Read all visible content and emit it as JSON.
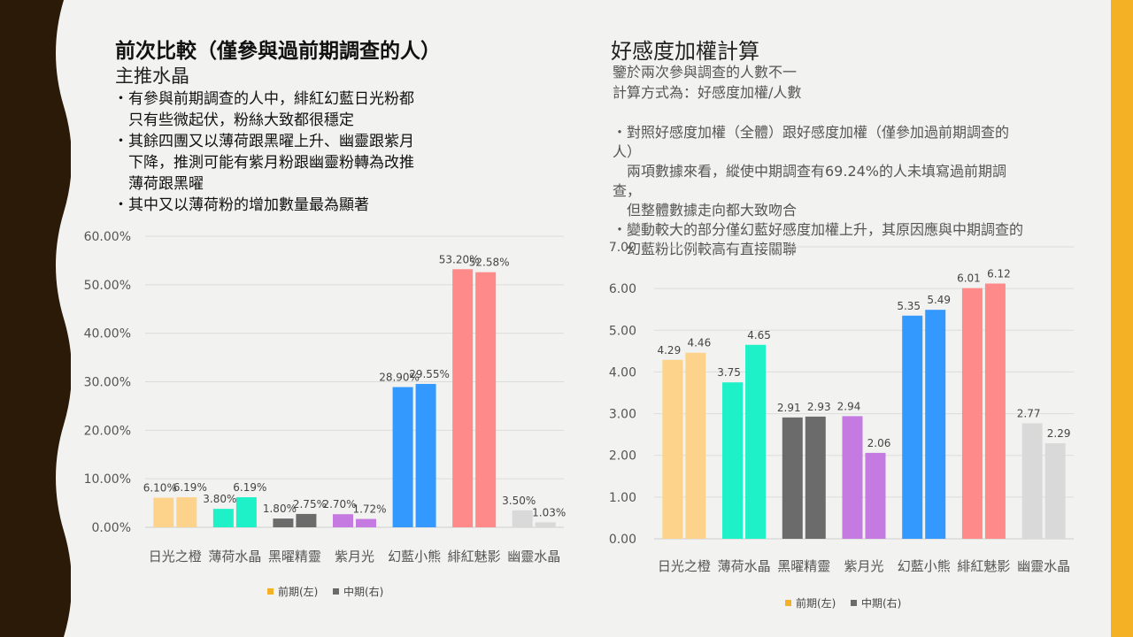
{
  "colors": {
    "sidebar_dark": "#2b1a08",
    "accent_bar": "#f5b125",
    "background": "#f2f2f0",
    "legend_left": "#f5b125",
    "legend_right": "#6b6b6b"
  },
  "left": {
    "title": "前次比較（僅參與過前期調查的人）",
    "subtitle": "主推水晶",
    "bullets": [
      "・有參與前期調查的人中，緋紅幻藍日光粉都",
      "　只有些微起伏，粉絲大致都很穩定",
      "・其餘四團又以薄荷跟黑曜上升、幽靈跟紫月",
      "　下降，推測可能有紫月粉跟幽靈粉轉為改推",
      "　薄荷跟黑曜",
      "・其中又以薄荷粉的增加數量最為顯著"
    ]
  },
  "right": {
    "title": "好感度加權計算",
    "line1": "鑒於兩次參與調查的人數不一",
    "line2": "計算方式為：好感度加權/人數",
    "body": [
      "・對照好感度加權（全體）跟好感度加權（僅參加過前期調查的",
      "人）",
      "　兩項數據來看，縱使中期調查有69.24%的人未填寫過前期調",
      "查，",
      "　但整體數據走向都大致吻合",
      "・變動較大的部分僅幻藍好感度加權上升，其原因應與中期調查的",
      "　幻藍粉比例較高有直接關聯"
    ]
  },
  "chart_data": [
    {
      "type": "bar",
      "categories": [
        "日光之橙",
        "薄荷水晶",
        "黑曜精靈",
        "紫月光",
        "幻藍小熊",
        "緋紅魅影",
        "幽靈水晶"
      ],
      "colors": [
        "#fdd38c",
        "#1ef0c8",
        "#6b6b6b",
        "#c47ae0",
        "#3399ff",
        "#ff8a8a",
        "#d9d9d9"
      ],
      "series": [
        {
          "name": "前期(左)",
          "values": [
            6.1,
            3.8,
            1.8,
            2.7,
            28.9,
            53.2,
            3.5
          ],
          "labels": [
            "6.10%",
            "3.80%",
            "1.80%",
            "2.70%",
            "28.90%",
            "53.20%",
            "3.50%"
          ]
        },
        {
          "name": "中期(右)",
          "values": [
            6.19,
            6.19,
            2.75,
            1.72,
            29.55,
            52.58,
            1.03
          ],
          "labels": [
            "6.19%",
            "6.19%",
            "2.75%",
            "1.72%",
            "29.55%",
            "52.58%",
            "1.03%"
          ]
        }
      ],
      "yticks": [
        "0.00%",
        "10.00%",
        "20.00%",
        "30.00%",
        "40.00%",
        "50.00%",
        "60.00%"
      ],
      "ylim": [
        0,
        60
      ],
      "grid": true,
      "legend": "bottom"
    },
    {
      "type": "bar",
      "categories": [
        "日光之橙",
        "薄荷水晶",
        "黑曜精靈",
        "紫月光",
        "幻藍小熊",
        "緋紅魅影",
        "幽靈水晶"
      ],
      "colors": [
        "#fdd38c",
        "#1ef0c8",
        "#6b6b6b",
        "#c47ae0",
        "#3399ff",
        "#ff8a8a",
        "#d9d9d9"
      ],
      "series": [
        {
          "name": "前期(左)",
          "values": [
            4.29,
            3.75,
            2.91,
            2.94,
            5.35,
            6.01,
            2.77
          ],
          "labels": [
            "4.29",
            "3.75",
            "2.91",
            "2.94",
            "5.35",
            "6.01",
            "2.77"
          ]
        },
        {
          "name": "中期(右)",
          "values": [
            4.46,
            4.65,
            2.93,
            2.06,
            5.49,
            6.12,
            2.29
          ],
          "labels": [
            "4.46",
            "4.65",
            "2.93",
            "2.06",
            "5.49",
            "6.12",
            "2.29"
          ]
        }
      ],
      "yticks": [
        "0.00",
        "1.00",
        "2.00",
        "3.00",
        "4.00",
        "5.00",
        "6.00",
        "7.00"
      ],
      "ylim": [
        0,
        7
      ],
      "grid": true,
      "legend": "bottom"
    }
  ]
}
